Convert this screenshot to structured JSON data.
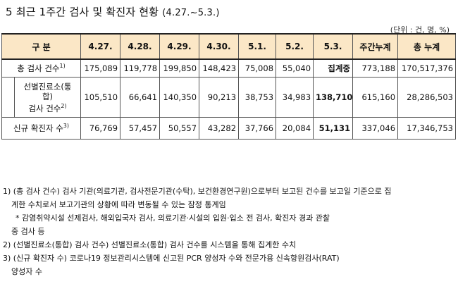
{
  "title": {
    "main": "5 최근 1주간 검사 및 확진자 현황",
    "sub": "(4.27.~5.3.)"
  },
  "unit": "(단위 : 건, 명, %)",
  "table": {
    "headers": [
      "구 분",
      "4.27.",
      "4.28.",
      "4.29.",
      "4.30.",
      "5.1.",
      "5.2.",
      "5.3.",
      "주간누계",
      "총 누계"
    ],
    "row1": {
      "label": "총 검사 건수",
      "sup": "1)",
      "values": [
        "175,089",
        "119,778",
        "199,850",
        "148,423",
        "75,008",
        "55,040",
        "집계중",
        "773,188",
        "170,517,376"
      ]
    },
    "row2": {
      "label_line1": "선별진료소(통",
      "label_line2": "합)",
      "label_line3": "검사 건수",
      "sup": "2)",
      "values": [
        "105,510",
        "66,641",
        "140,350",
        "90,213",
        "38,753",
        "34,983",
        "138,710",
        "615,160",
        "28,286,503"
      ]
    },
    "row3": {
      "label": "신규 확진자 수",
      "sup": "3)",
      "values": [
        "76,769",
        "57,457",
        "50,557",
        "43,282",
        "37,766",
        "20,084",
        "51,131",
        "337,046",
        "17,346,753"
      ]
    }
  },
  "notes": {
    "n1a": "1) (총 검사 건수) 검사 기관(의료기관, 검사전문기관(수탁), 보건환경연구원)으로부터 보고된 건수를 보고일 기준으로 집",
    "n1b": "계한 수치로서 보고기관의 상황에 따라 변동될 수 있는 잠정 통계임",
    "n1c": "* 감염취약시설 선제검사, 해외입국자 검사, 의료기관·시설의 입원·입소 전 검사, 확진자 경과 관찰",
    "n1d": "중 검사 등",
    "n2": "2) (선별진료소(통합) 검사 건수) 선별진료소(통합) 검사 건수를 시스템을 통해 집계한 수치",
    "n3a": "3) (신규 확진자 수) 코로나19 정보관리시스템에 신고된 PCR 양성자 수와 전문가용 신속항원검사(RAT)",
    "n3b": "양성자 수"
  }
}
